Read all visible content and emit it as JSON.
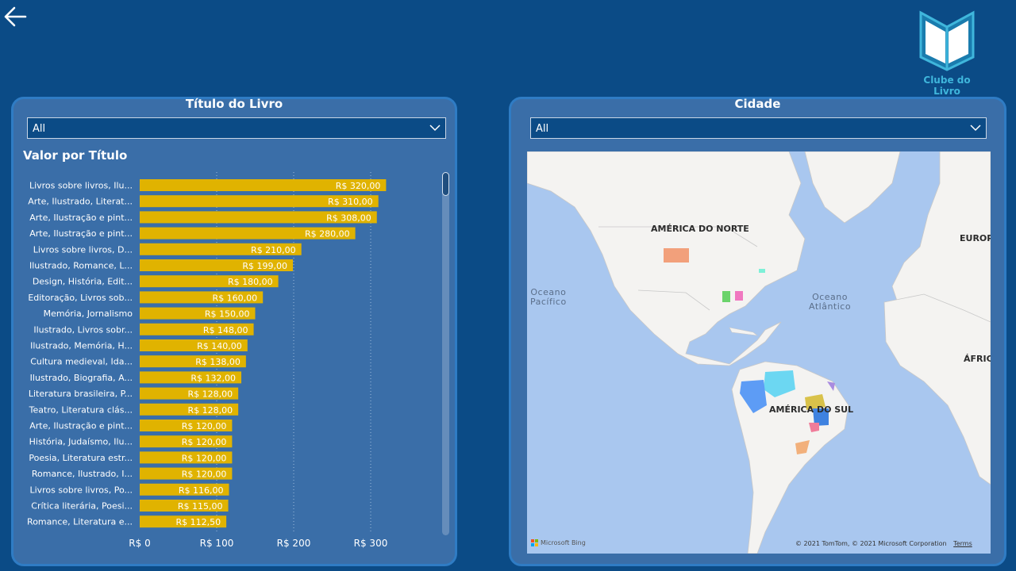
{
  "nav": {
    "back_icon": "arrow-left-icon"
  },
  "brand": {
    "name": "Clube do Livro",
    "logo_icon": "open-book-icon",
    "color": "#3fb6dc"
  },
  "left_panel": {
    "title": "Título do Livro",
    "filter_value": "All",
    "chart_title": "Valor por Título"
  },
  "right_panel": {
    "title": "Cidade",
    "filter_value": "All",
    "map": {
      "labels": {
        "north_america": "AMÉRICA DO NORTE",
        "south_america": "AMÉRICA DO SUL",
        "europe": "EUROP",
        "africa": "ÁFRIC",
        "pacific_line1": "Oceano",
        "pacific_line2": "Pacífico",
        "atlantic_line1": "Oceano",
        "atlantic_line2": "Atlântico"
      },
      "attribution": "© 2021 TomTom, © 2021 Microsoft Corporation",
      "terms_link": "Terms",
      "provider": "Microsoft Bing"
    }
  },
  "chart_data": {
    "type": "bar",
    "orientation": "horizontal",
    "title": "Valor por Título",
    "bar_color": "#e0b300",
    "categories": [
      "Livros sobre livros, Ilu...",
      "Arte, Ilustrado, Literat...",
      "Arte, Ilustração e pint...",
      "Arte, Ilustração e pint...",
      "Livros sobre livros, D...",
      "Ilustrado, Romance, L...",
      "Design, História, Edit...",
      "Editoração, Livros sob...",
      "Memória, Jornalismo",
      "Ilustrado, Livros sobr...",
      "Ilustrado, Memória, H...",
      "Cultura medieval, Ida...",
      "Ilustrado, Biografia, A...",
      "Literatura brasileira, P...",
      "Teatro, Literatura clás...",
      "Arte, Ilustração e pint...",
      "História, Judaísmo, Ilu...",
      "Poesia, Literatura estr...",
      "Romance, Ilustrado, I...",
      "Livros sobre livros, Po...",
      "Crítica literária, Poesi...",
      "Romance, Literatura e..."
    ],
    "values": [
      320,
      310,
      308,
      280,
      210,
      199,
      180,
      160,
      150,
      148,
      140,
      138,
      132,
      128,
      128,
      120,
      120,
      120,
      120,
      116,
      115,
      112.5
    ],
    "value_labels": [
      "R$ 320,00",
      "R$ 310,00",
      "R$ 308,00",
      "R$ 280,00",
      "R$ 210,00",
      "R$ 199,00",
      "R$ 180,00",
      "R$ 160,00",
      "R$ 150,00",
      "R$ 148,00",
      "R$ 140,00",
      "R$ 138,00",
      "R$ 132,00",
      "R$ 128,00",
      "R$ 128,00",
      "R$ 120,00",
      "R$ 120,00",
      "R$ 120,00",
      "R$ 120,00",
      "R$ 116,00",
      "R$ 115,00",
      "R$ 112,50"
    ],
    "x_ticks": [
      0,
      100,
      200,
      300
    ],
    "x_tick_labels": [
      "R$ 0",
      "R$ 100",
      "R$ 200",
      "R$ 300"
    ],
    "xlim": [
      0,
      400
    ],
    "grid": true
  }
}
